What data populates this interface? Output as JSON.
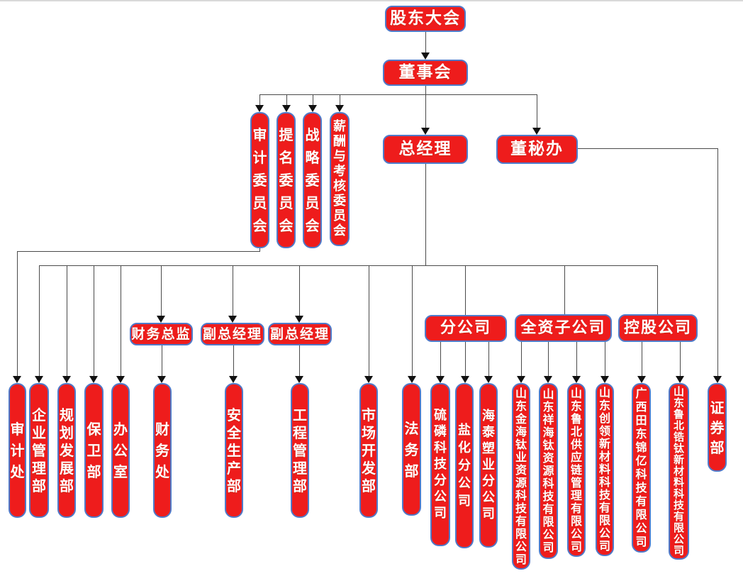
{
  "diagram": {
    "kind": "organization-chart",
    "colors": {
      "node_fill": "#ee1c1c",
      "node_border": "#4f7ac9",
      "node_text": "#ffffff",
      "connector_line": "#4a4a4a",
      "arrowhead": "#111111",
      "background": "#ffffff"
    }
  },
  "nodes": [
    {
      "id": "shareholders-meeting",
      "label": "股东大会"
    },
    {
      "id": "board-of-directors",
      "label": "董事会"
    },
    {
      "id": "general-manager",
      "label": "总经理"
    },
    {
      "id": "board-secretary-office",
      "label": "董秘办"
    },
    {
      "id": "audit-committee",
      "label": "审计委员会"
    },
    {
      "id": "nomination-committee",
      "label": "提名委员会"
    },
    {
      "id": "strategy-committee",
      "label": "战略委员会"
    },
    {
      "id": "compensation-assessment-committee",
      "label": "薪酬与考核委员会"
    },
    {
      "id": "cfo",
      "label": "财务总监"
    },
    {
      "id": "deputy-gm-1",
      "label": "副总经理"
    },
    {
      "id": "deputy-gm-2",
      "label": "副总经理"
    },
    {
      "id": "branch-companies",
      "label": "分公司"
    },
    {
      "id": "wholly-owned-subsidiaries",
      "label": "全资子公司"
    },
    {
      "id": "holding-companies",
      "label": "控股公司"
    },
    {
      "id": "audit-office",
      "label": "审计处"
    },
    {
      "id": "enterprise-management-dept",
      "label": "企业管理部"
    },
    {
      "id": "planning-development-dept",
      "label": "规划发展部"
    },
    {
      "id": "security-dept",
      "label": "保卫部"
    },
    {
      "id": "general-office",
      "label": "办公室"
    },
    {
      "id": "finance-office",
      "label": "财务处"
    },
    {
      "id": "safety-production-dept",
      "label": "安全生产部"
    },
    {
      "id": "engineering-management-dept",
      "label": "工程管理部"
    },
    {
      "id": "market-development-dept",
      "label": "市场开发部"
    },
    {
      "id": "legal-affairs-dept",
      "label": "法务部"
    },
    {
      "id": "sulfur-phosphorus-tech-branch",
      "label": "硫磷科技分公司"
    },
    {
      "id": "salt-chemical-branch",
      "label": "盐化分公司"
    },
    {
      "id": "haitai-plastics-branch",
      "label": "海泰塑业分公司"
    },
    {
      "id": "jinhai-titanium-resources",
      "label": "山东金海钛业资源科技有限公司"
    },
    {
      "id": "xianghai-titanium-resources",
      "label": "山东祥海钛资源科技有限公司"
    },
    {
      "id": "lubei-supply-chain",
      "label": "山东鲁北供应链管理有限公司"
    },
    {
      "id": "chuangling-new-materials",
      "label": "山东创领新材料科技有限公司"
    },
    {
      "id": "guangxi-tiandong-jinyi",
      "label": "广西田东锦亿科技有限公司"
    },
    {
      "id": "lubei-zirconium-titanium",
      "label": "山东鲁北锆钛新材料科技有限公司"
    },
    {
      "id": "securities-dept",
      "label": "证券部"
    }
  ],
  "connections": [
    {
      "from": "shareholders-meeting",
      "to": "board-of-directors"
    },
    {
      "from": "board-of-directors",
      "to": "audit-committee"
    },
    {
      "from": "board-of-directors",
      "to": "nomination-committee"
    },
    {
      "from": "board-of-directors",
      "to": "strategy-committee"
    },
    {
      "from": "board-of-directors",
      "to": "compensation-assessment-committee"
    },
    {
      "from": "board-of-directors",
      "to": "general-manager"
    },
    {
      "from": "board-of-directors",
      "to": "board-secretary-office"
    },
    {
      "from": "audit-committee",
      "to": "audit-office"
    },
    {
      "from": "board-secretary-office",
      "to": "securities-dept"
    },
    {
      "from": "general-manager",
      "to": "enterprise-management-dept"
    },
    {
      "from": "general-manager",
      "to": "planning-development-dept"
    },
    {
      "from": "general-manager",
      "to": "security-dept"
    },
    {
      "from": "general-manager",
      "to": "general-office"
    },
    {
      "from": "general-manager",
      "to": "cfo"
    },
    {
      "from": "general-manager",
      "to": "deputy-gm-1"
    },
    {
      "from": "general-manager",
      "to": "deputy-gm-2"
    },
    {
      "from": "general-manager",
      "to": "market-development-dept"
    },
    {
      "from": "general-manager",
      "to": "legal-affairs-dept"
    },
    {
      "from": "general-manager",
      "to": "branch-companies"
    },
    {
      "from": "general-manager",
      "to": "wholly-owned-subsidiaries"
    },
    {
      "from": "general-manager",
      "to": "holding-companies"
    },
    {
      "from": "cfo",
      "to": "finance-office"
    },
    {
      "from": "deputy-gm-1",
      "to": "safety-production-dept"
    },
    {
      "from": "deputy-gm-2",
      "to": "engineering-management-dept"
    },
    {
      "from": "branch-companies",
      "to": "sulfur-phosphorus-tech-branch"
    },
    {
      "from": "branch-companies",
      "to": "salt-chemical-branch"
    },
    {
      "from": "branch-companies",
      "to": "haitai-plastics-branch"
    },
    {
      "from": "wholly-owned-subsidiaries",
      "to": "jinhai-titanium-resources"
    },
    {
      "from": "wholly-owned-subsidiaries",
      "to": "xianghai-titanium-resources"
    },
    {
      "from": "wholly-owned-subsidiaries",
      "to": "lubei-supply-chain"
    },
    {
      "from": "wholly-owned-subsidiaries",
      "to": "chuangling-new-materials"
    },
    {
      "from": "holding-companies",
      "to": "guangxi-tiandong-jinyi"
    },
    {
      "from": "holding-companies",
      "to": "lubei-zirconium-titanium"
    },
    {
      "from": "branch-companies",
      "to": "securities-dept-note",
      "note": ""
    }
  ]
}
